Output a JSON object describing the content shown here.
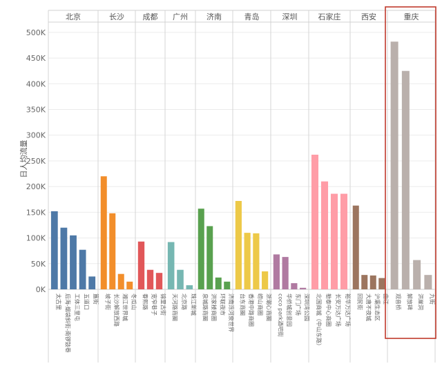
{
  "chart_data": {
    "type": "bar",
    "title": "",
    "xlabel": "",
    "ylabel": "日人均流量",
    "ylim": [
      0,
      520000
    ],
    "yticks": [
      0,
      50000,
      100000,
      150000,
      200000,
      250000,
      300000,
      350000,
      400000,
      450000,
      500000
    ],
    "ytick_labels": [
      "0K",
      "50K",
      "100K",
      "150K",
      "200K",
      "250K",
      "300K",
      "350K",
      "400K",
      "450K",
      "500K"
    ],
    "grid": true,
    "highlight_group": "重庆",
    "highlight_color": "#c0392b",
    "groups": [
      {
        "name": "北京",
        "color": "#4e79a7",
        "categories": [
          "太古里",
          "后海-烟袋斜街-南锣鼓巷",
          "工体三里屯",
          "五道口",
          "簋街"
        ],
        "values": [
          152000,
          120000,
          105000,
          77000,
          25000
        ]
      },
      {
        "name": "长沙",
        "color": "#f28e2b",
        "categories": [
          "坡子街",
          "长沙解放西路",
          "湘江世界城",
          "冬瓜山"
        ],
        "values": [
          220000,
          148000,
          30000,
          15000
        ]
      },
      {
        "name": "成都",
        "color": "#e15759",
        "categories": [
          "春熙路",
          "宽窄巷子",
          "锦里古街"
        ],
        "values": [
          93000,
          38000,
          32000
        ]
      },
      {
        "name": "广州",
        "color": "#76b7b2",
        "categories": [
          "天河路商圈",
          "北京路",
          "珠江新城"
        ],
        "values": [
          92000,
          38000,
          8000
        ]
      },
      {
        "name": "济南",
        "color": "#59a14f",
        "categories": [
          "泉城路商圈",
          "洪家楼商圈",
          "环联夜市",
          "济南泺河泉世界"
        ],
        "values": [
          157000,
          123000,
          23000,
          15000
        ]
      },
      {
        "name": "青岛",
        "color": "#edc948",
        "categories": [
          "台东商圈",
          "香港中路商圈",
          "崂山商圈",
          "浙潮心商圈"
        ],
        "values": [
          172000,
          110000,
          109000,
          35000
        ]
      },
      {
        "name": "深圳",
        "color": "#b07aa1",
        "categories": [
          "coco park酒吧街",
          "华侨城创意园",
          "东门广场",
          "深圳湾公园"
        ],
        "values": [
          68000,
          63000,
          12000,
          3000
        ]
      },
      {
        "name": "石家庄",
        "color": "#ff9da7",
        "categories": [
          "北国商城（中山东路）",
          "勒泰中心商圈",
          "长安万达广场",
          "裕华万达广场"
        ],
        "values": [
          262000,
          210000,
          186000,
          186000
        ]
      },
      {
        "name": "西安",
        "color": "#9c755f",
        "categories": [
          "回民街",
          "大唐不夜城",
          "沪灞生态区",
          "曲江"
        ],
        "values": [
          163000,
          28000,
          27000,
          22000
        ]
      },
      {
        "name": "重庆",
        "color": "#bab0ac",
        "categories": [
          "观音桥",
          "解放碑",
          "洪崖洞",
          "九街"
        ],
        "values": [
          482000,
          425000,
          57000,
          28000
        ]
      }
    ]
  }
}
